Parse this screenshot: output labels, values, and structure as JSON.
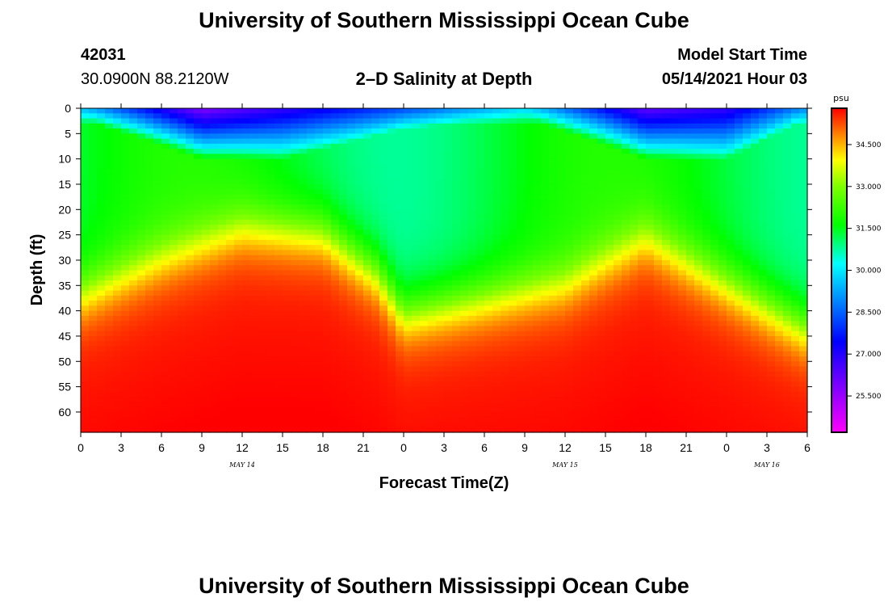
{
  "header": {
    "title_top": "University of Southern Mississippi Ocean Cube",
    "title_bottom": "University of Southern Mississippi Ocean Cube",
    "station_id": "42031",
    "coordinates": "30.0900N  88.2120W",
    "plot_title": "2–D Salinity at Depth",
    "model_start_label": "Model Start Time",
    "model_start_value": "05/14/2021 Hour 03"
  },
  "chart_data": {
    "type": "heatmap",
    "title": "2–D Salinity at Depth",
    "xlabel": "Forecast Time(Z)",
    "ylabel": "Depth (ft)",
    "x_ticks": [
      "0",
      "3",
      "6",
      "9",
      "12",
      "15",
      "18",
      "21",
      "0",
      "3",
      "6",
      "9",
      "12",
      "15",
      "18",
      "21",
      "0",
      "3",
      "6"
    ],
    "x_range_hours": [
      0,
      54
    ],
    "y_ticks": [
      "0",
      "5",
      "10",
      "15",
      "20",
      "25",
      "30",
      "35",
      "40",
      "45",
      "50",
      "55",
      "60"
    ],
    "y_range_ft": [
      0,
      64
    ],
    "date_labels": [
      {
        "label": "MAY 14",
        "hour": 12
      },
      {
        "label": "MAY 15",
        "hour": 36
      },
      {
        "label": "MAY 16",
        "hour": 51
      }
    ],
    "colorbar": {
      "unit": "psu",
      "range": [
        24.2,
        35.8
      ],
      "ticks": [
        "34.500",
        "33.000",
        "31.500",
        "30.000",
        "28.500",
        "27.000",
        "25.500"
      ],
      "tick_values": [
        34.5,
        33.0,
        31.5,
        30.0,
        28.5,
        27.0,
        25.5
      ]
    },
    "contours_surface_layer": [
      {
        "hour": 0,
        "fresh_depth_ft": 0,
        "min_psu": 29.5
      },
      {
        "hour": 9,
        "fresh_depth_ft": 8,
        "min_psu": 25.8
      },
      {
        "hour": 15,
        "fresh_depth_ft": 8,
        "min_psu": 26.8
      },
      {
        "hour": 24,
        "fresh_depth_ft": 2,
        "min_psu": 28.2
      },
      {
        "hour": 33,
        "fresh_depth_ft": 0,
        "min_psu": 29.8
      },
      {
        "hour": 42,
        "fresh_depth_ft": 8,
        "min_psu": 26.2
      },
      {
        "hour": 48,
        "fresh_depth_ft": 8,
        "min_psu": 26.8
      },
      {
        "hour": 54,
        "fresh_depth_ft": 0,
        "min_psu": 29.0
      }
    ],
    "halocline_depth_ft": [
      {
        "hour": 0,
        "depth": 37
      },
      {
        "hour": 6,
        "depth": 30
      },
      {
        "hour": 12,
        "depth": 24
      },
      {
        "hour": 18,
        "depth": 25
      },
      {
        "hour": 22,
        "depth": 33
      },
      {
        "hour": 24,
        "depth": 41
      },
      {
        "hour": 30,
        "depth": 38
      },
      {
        "hour": 36,
        "depth": 35
      },
      {
        "hour": 42,
        "depth": 26
      },
      {
        "hour": 48,
        "depth": 35
      },
      {
        "hour": 54,
        "depth": 44
      }
    ]
  }
}
